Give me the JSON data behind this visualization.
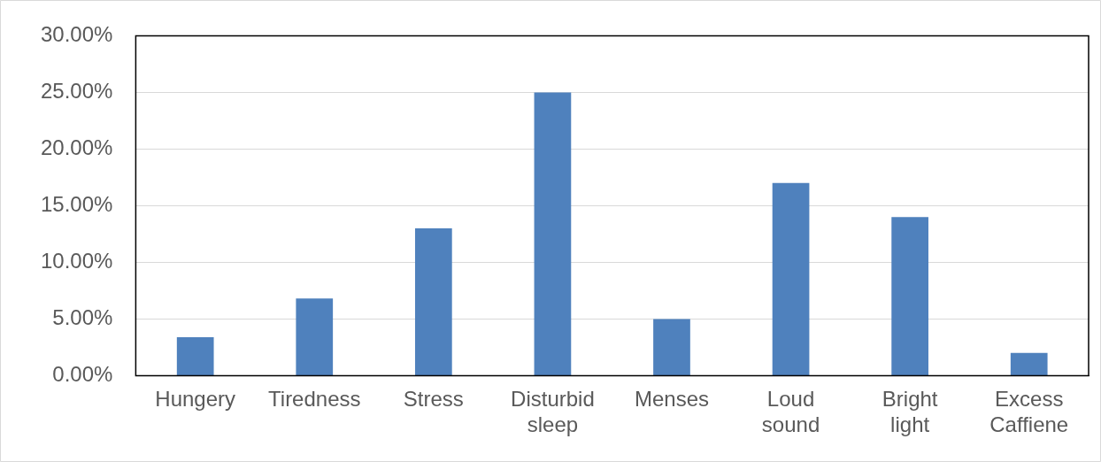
{
  "chart_data": {
    "type": "bar",
    "categories": [
      "Hungery",
      "Tiredness",
      "Stress",
      "Disturbid sleep",
      "Menses",
      "Loud sound",
      "Bright light",
      "Excess Caffiene"
    ],
    "values": [
      3.4,
      6.8,
      13,
      25,
      5,
      17,
      14,
      2
    ],
    "color": "#4f81bd",
    "ylim": [
      0,
      30
    ],
    "yticks": [
      {
        "value": 0,
        "label": "0.00%"
      },
      {
        "value": 5,
        "label": "5.00%"
      },
      {
        "value": 10,
        "label": "10.00%"
      },
      {
        "value": 15,
        "label": "15.00%"
      },
      {
        "value": 20,
        "label": "20.00%"
      },
      {
        "value": 25,
        "label": "25.00%"
      },
      {
        "value": 30,
        "label": "30.00%"
      }
    ],
    "grid": "y"
  }
}
